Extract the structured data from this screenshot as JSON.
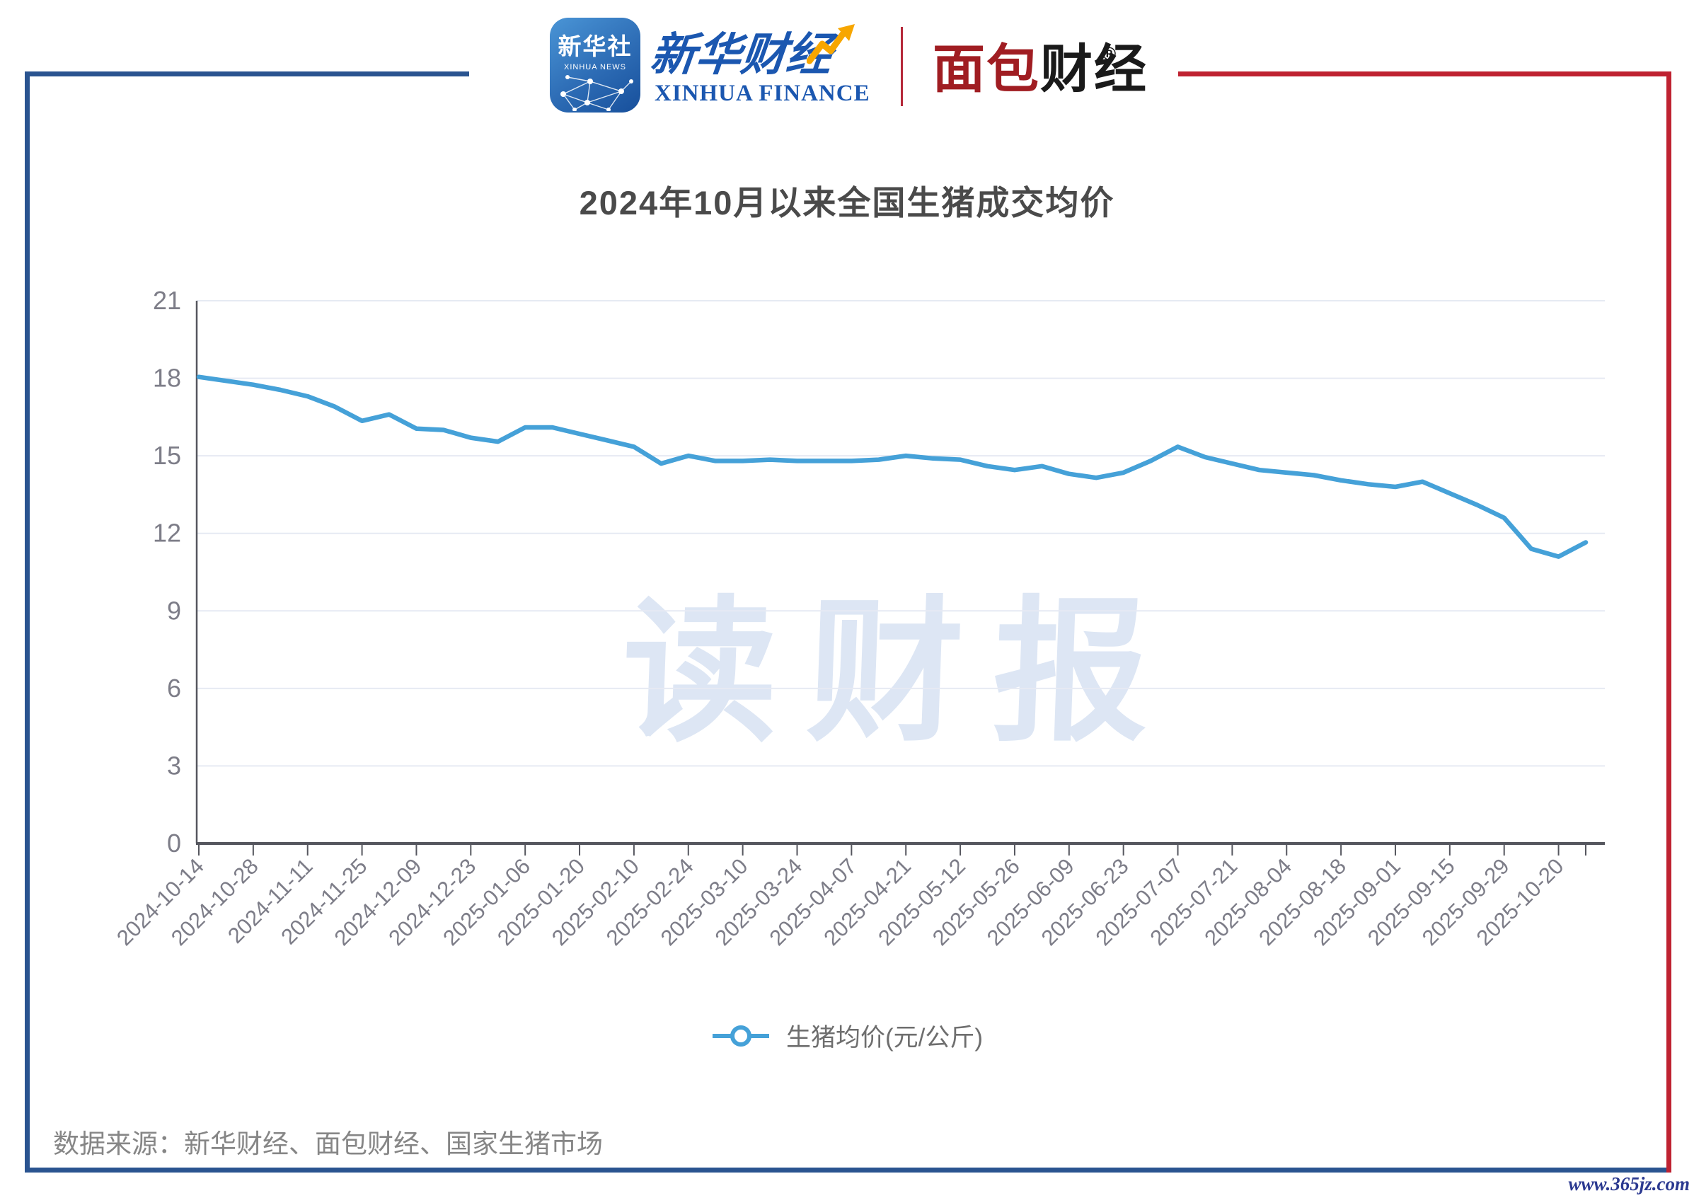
{
  "header": {
    "news_icon": {
      "cn": "新华社",
      "en": "XINHUA NEWS"
    },
    "xinhua_finance": {
      "cn": "新华财经",
      "en": "XINHUA FINANCE"
    },
    "mianbao": {
      "cn_red": "面包",
      "cn_black": "财经",
      "reg_mark": "®"
    }
  },
  "title": "2024年10月以来全国生猪成交均价",
  "watermark": "读财报",
  "legend": {
    "label": "生猪均价(元/公斤)"
  },
  "source_note": "数据来源：新华财经、面包财经、国家生猪市场",
  "site_url": "www.365jz.com",
  "colors": {
    "frame_blue": "#2a5490",
    "frame_red": "#bf2231",
    "line_blue": "#45a1d8",
    "grid": "#e6eaf3",
    "axis": "#55565e",
    "axis_label": "#7d7d88",
    "title_text": "#4a4a4a",
    "watermark_text": "#dde6f4"
  },
  "chart_data": {
    "type": "line",
    "title": "2024年10月以来全国生猪成交均价",
    "series_name": "生猪均价(元/公斤)",
    "x_tick_labels": [
      "2024-10-14",
      "2024-10-28",
      "2024-11-11",
      "2024-11-25",
      "2024-12-09",
      "2024-12-23",
      "2025-01-06",
      "2025-01-20",
      "2025-02-10",
      "2025-02-24",
      "2025-03-10",
      "2025-03-24",
      "2025-04-07",
      "2025-04-21",
      "2025-05-12",
      "2025-05-26",
      "2025-06-09",
      "2025-06-23",
      "2025-07-07",
      "2025-07-21",
      "2025-08-04",
      "2025-08-18",
      "2025-09-01",
      "2025-09-15",
      "2025-09-29",
      "2025-10-20"
    ],
    "label_interval": 2,
    "values": [
      18.05,
      17.9,
      17.75,
      17.55,
      17.3,
      16.9,
      16.35,
      16.6,
      16.05,
      16.0,
      15.7,
      15.55,
      16.1,
      16.1,
      15.85,
      15.6,
      15.35,
      14.7,
      15.0,
      14.8,
      14.8,
      14.85,
      14.8,
      14.8,
      14.8,
      14.85,
      15.0,
      14.9,
      14.85,
      14.6,
      14.45,
      14.6,
      14.3,
      14.15,
      14.35,
      14.8,
      15.35,
      14.95,
      14.7,
      14.45,
      14.35,
      14.25,
      14.05,
      13.9,
      13.8,
      14.0,
      13.55,
      13.1,
      12.6,
      11.4,
      11.1,
      11.65
    ],
    "ylim": [
      0,
      21
    ],
    "y_ticks": [
      0,
      3,
      6,
      9,
      12,
      15,
      18,
      21
    ],
    "grid": "horizontal",
    "legend_position": "bottom",
    "line_color": "#45a1d8",
    "marker": "empty-circle"
  }
}
